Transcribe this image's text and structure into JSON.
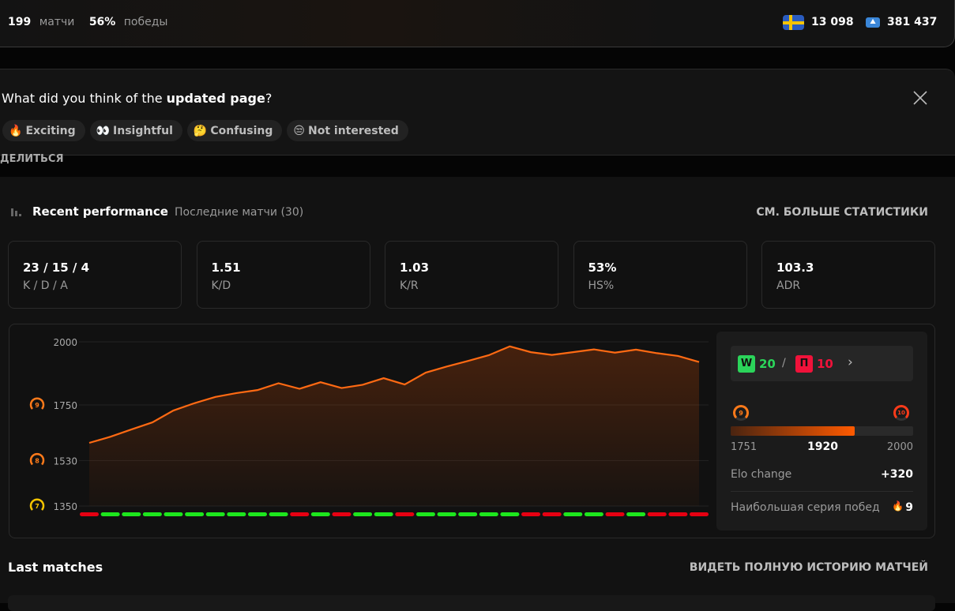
{
  "topbar": {
    "matches_value": "199",
    "matches_label": "матчи",
    "wins_value": "56%",
    "wins_label": "победы",
    "country_rank": "13 098",
    "region_rank": "381 437",
    "country_flag": "sweden-flag-icon",
    "region_icon": "europe-region-icon"
  },
  "feedback": {
    "question_prefix": "What did you think of the ",
    "question_bold": "updated page",
    "question_suffix": "?",
    "options": [
      {
        "emoji": "🔥",
        "label": "Exciting"
      },
      {
        "emoji": "👀",
        "label": "Insightful"
      },
      {
        "emoji": "🤔",
        "label": "Confusing"
      },
      {
        "emoji": "😒",
        "label": "Not interested"
      }
    ]
  },
  "share_label": "ДЕЛИТЬСЯ",
  "performance": {
    "title": "Recent performance",
    "subtitle": "Последние матчи (30)",
    "more_link": "СМ. БОЛЬШЕ СТАТИСТИКИ",
    "stats": [
      {
        "value": "23 / 15 / 4",
        "label": "K / D / A"
      },
      {
        "value": "1.51",
        "label": "K/D"
      },
      {
        "value": "1.03",
        "label": "K/R"
      },
      {
        "value": "53%",
        "label": "HS%"
      },
      {
        "value": "103.3",
        "label": "ADR"
      }
    ]
  },
  "summary": {
    "wins_badge": "W",
    "wins": "20",
    "sep": "/",
    "losses_badge": "П",
    "losses": "10",
    "level_from": "9",
    "level_to": "10",
    "range_min": "1751",
    "current": "1920",
    "range_max": "2000",
    "progress_fraction": 0.68,
    "elo_change_label": "Elo change",
    "elo_change": "+320",
    "streak_label": "Наибольшая серия побед",
    "streak": "9"
  },
  "last_matches": {
    "title": "Last matches",
    "full_history_link": "ВИДЕТЬ ПОЛНУЮ ИСТОРИЮ МАТЧЕЙ"
  },
  "colors": {
    "line": "#ff6a13",
    "win": "#1de61d",
    "loss": "#e60012",
    "accent": "#ff5500"
  },
  "chart_data": {
    "type": "area",
    "ylim": [
      1350,
      2000
    ],
    "yticks": [
      {
        "value": 2000,
        "label": "2000"
      },
      {
        "value": 1750,
        "label": "1750",
        "level": "9"
      },
      {
        "value": 1530,
        "label": "1530",
        "level": "8"
      },
      {
        "value": 1350,
        "label": "1350",
        "level": "7"
      }
    ],
    "values": [
      1600,
      1624,
      1653,
      1681,
      1728,
      1757,
      1782,
      1797,
      1809,
      1836,
      1814,
      1840,
      1817,
      1830,
      1856,
      1831,
      1878,
      1902,
      1924,
      1947,
      1982,
      1959,
      1948,
      1959,
      1970,
      1957,
      1969,
      1955,
      1944,
      1920
    ],
    "results": [
      "L",
      "W",
      "W",
      "W",
      "W",
      "W",
      "W",
      "W",
      "W",
      "W",
      "L",
      "W",
      "L",
      "W",
      "W",
      "L",
      "W",
      "W",
      "W",
      "W",
      "W",
      "L",
      "L",
      "W",
      "W",
      "L",
      "W",
      "L",
      "L",
      "L"
    ]
  }
}
